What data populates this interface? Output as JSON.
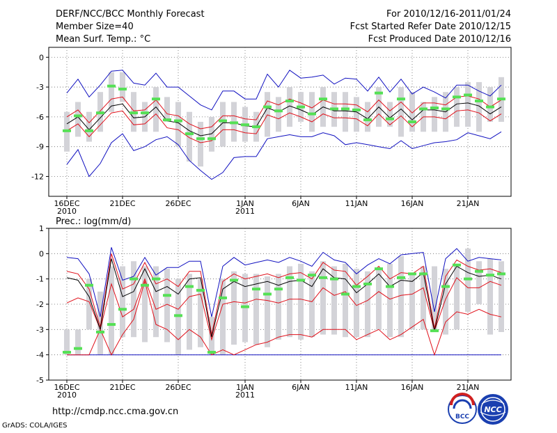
{
  "header": {
    "title": "DERF/NCC/BCC Monthly Forecast",
    "member_size": "Member Size=40",
    "variable": "Mean Surf. Temp.: °C",
    "period": "For 2010/12/16-2011/01/24",
    "started": "Fcst Started Refer Date 2010/12/15",
    "produced": "Fcst Produced Date 2010/12/16"
  },
  "precip_label": "Prec.: log(mm/d)",
  "footer": {
    "url": "http://cmdp.ncc.cma.gov.cn",
    "credit": "GrADS: COLA/IGES"
  },
  "logos": {
    "bcc": "BCC",
    "ncc": "NCC"
  },
  "colors": {
    "gray_bar": "#d3d3d8",
    "green": "#55e055",
    "red": "#e0101a",
    "blue": "#1010c0",
    "black": "#000000"
  },
  "chart_data": [
    {
      "type": "line",
      "name": "temperature",
      "ylim": [
        -14,
        1
      ],
      "yticks": [
        0,
        -3,
        -6,
        -9,
        -12
      ],
      "xlabels": [
        {
          "day": 1,
          "label": "16DEC",
          "sub": "2010"
        },
        {
          "day": 6,
          "label": "21DEC"
        },
        {
          "day": 11,
          "label": "26DEC"
        },
        {
          "day": 17,
          "label": "1JAN",
          "sub": "2011"
        },
        {
          "day": 22,
          "label": "6JAN"
        },
        {
          "day": 27,
          "label": "11JAN"
        },
        {
          "day": 32,
          "label": "16JAN"
        },
        {
          "day": 37,
          "label": "21JAN"
        }
      ],
      "days": [
        1,
        2,
        3,
        4,
        5,
        6,
        7,
        8,
        9,
        10,
        11,
        12,
        13,
        14,
        15,
        16,
        17,
        18,
        19,
        20,
        21,
        22,
        23,
        24,
        25,
        26,
        27,
        28,
        29,
        30,
        31,
        32,
        33,
        34,
        35,
        36,
        37,
        38,
        39,
        40
      ],
      "bar_low": [
        -9.5,
        -8,
        -8.5,
        -7.5,
        -5.5,
        -4.5,
        -7.5,
        -7.5,
        -7.5,
        -6.5,
        -9,
        -10.5,
        -11,
        -9.5,
        -9,
        -8.5,
        -8.5,
        -8.5,
        -8,
        -7.5,
        -7,
        -6.5,
        -7.5,
        -7,
        -7,
        -7.5,
        -7.5,
        -7.5,
        -7,
        -7,
        -8,
        -7.5,
        -7.5,
        -7.5,
        -7.5,
        -7,
        -7,
        -7.5,
        -6.5,
        -6.5
      ],
      "bar_high": [
        -5.5,
        -4.5,
        -5.5,
        -3.5,
        -1.5,
        -1.5,
        -3.5,
        -4.5,
        -3,
        -4,
        -4.5,
        -5.5,
        -6.5,
        -6,
        -4.5,
        -4.5,
        -5,
        -5.5,
        -3.5,
        -4,
        -3,
        -3.5,
        -3.5,
        -3,
        -3.5,
        -3.5,
        -4,
        -4.5,
        -3,
        -4.5,
        -3,
        -3.5,
        -4.5,
        -4,
        -3.5,
        -3,
        -2.5,
        -2.5,
        -3,
        -2
      ],
      "forecast": [
        -7.4,
        -5.9,
        -7.4,
        -5.6,
        -2.9,
        -3.2,
        -5.6,
        -5.6,
        -4.2,
        -6.3,
        -6.4,
        -7.7,
        -8.2,
        -8.2,
        -6.4,
        -6.6,
        -6.8,
        -7.0,
        -5.0,
        -5.4,
        -4.4,
        -5.0,
        -5.7,
        -4.2,
        -5.2,
        -5.2,
        -5.3,
        -6.3,
        -3.6,
        -6.2,
        -4.2,
        -6.5,
        -5.2,
        -5.1,
        -5.2,
        -4.0,
        -3.8,
        -4.4,
        -5.0,
        -4.2
      ],
      "mean": [
        -6.7,
        -6.0,
        -7.3,
        -6.1,
        -4.9,
        -4.7,
        -6.1,
        -6.0,
        -5.0,
        -6.4,
        -6.6,
        -7.4,
        -7.9,
        -7.7,
        -6.6,
        -6.6,
        -6.9,
        -7.0,
        -5.1,
        -5.5,
        -4.9,
        -5.3,
        -5.8,
        -5.0,
        -5.4,
        -5.4,
        -5.5,
        -6.2,
        -5.0,
        -6.1,
        -5.2,
        -6.3,
        -5.3,
        -5.3,
        -5.5,
        -4.7,
        -4.6,
        -4.9,
        -5.7,
        -5.0
      ],
      "mean_plus_sd": [
        -6.0,
        -5.3,
        -6.6,
        -5.4,
        -4.2,
        -4.0,
        -5.4,
        -5.3,
        -4.3,
        -5.7,
        -5.9,
        -6.7,
        -7.2,
        -7.0,
        -5.9,
        -5.9,
        -6.2,
        -6.3,
        -4.4,
        -4.8,
        -4.2,
        -4.6,
        -5.1,
        -4.3,
        -4.7,
        -4.7,
        -4.8,
        -5.5,
        -4.3,
        -5.4,
        -4.5,
        -5.6,
        -4.6,
        -4.6,
        -4.8,
        -4.0,
        -3.9,
        -4.2,
        -5.0,
        -4.3
      ],
      "mean_minus_sd": [
        -7.4,
        -6.7,
        -8.0,
        -6.8,
        -5.6,
        -5.4,
        -6.8,
        -6.7,
        -5.7,
        -7.1,
        -7.3,
        -8.1,
        -8.6,
        -8.4,
        -7.3,
        -7.3,
        -7.6,
        -7.7,
        -5.8,
        -6.2,
        -5.6,
        -6.0,
        -6.5,
        -5.7,
        -6.1,
        -6.1,
        -6.2,
        -6.9,
        -5.7,
        -6.8,
        -5.9,
        -7.0,
        -6.0,
        -6.0,
        -6.2,
        -5.4,
        -5.3,
        -5.6,
        -6.4,
        -5.7
      ],
      "max": [
        -3.6,
        -2.2,
        -4.0,
        -2.8,
        -1.4,
        -1.3,
        -2.6,
        -2.8,
        -1.6,
        -3.0,
        -3.0,
        -3.9,
        -4.8,
        -5.3,
        -3.4,
        -3.4,
        -4.2,
        -4.2,
        -1.7,
        -3.0,
        -1.3,
        -2.1,
        -2.0,
        -1.8,
        -2.7,
        -2.1,
        -2.2,
        -3.4,
        -2.0,
        -3.5,
        -2.2,
        -3.7,
        -3.0,
        -3.5,
        -4.1,
        -2.8,
        -2.8,
        -3.4,
        -3.9,
        -2.8
      ],
      "min": [
        -10.8,
        -9.3,
        -12.0,
        -10.7,
        -8.6,
        -7.7,
        -9.4,
        -9.0,
        -8.3,
        -8.0,
        -8.8,
        -10.4,
        -11.4,
        -12.3,
        -11.6,
        -10.1,
        -10.0,
        -10.0,
        -8.2,
        -8.0,
        -7.8,
        -8.0,
        -8.0,
        -7.6,
        -7.9,
        -8.8,
        -8.6,
        -8.8,
        -9.0,
        -9.2,
        -8.4,
        -9.2,
        -8.9,
        -8.6,
        -8.5,
        -8.3,
        -7.6,
        -7.9,
        -8.2,
        -7.5
      ]
    },
    {
      "type": "line",
      "name": "precipitation",
      "ylim": [
        -5,
        1
      ],
      "yticks": [
        1,
        0,
        -1,
        -2,
        -3,
        -4,
        -5
      ],
      "xlabels": [
        {
          "day": 1,
          "label": "16DEC",
          "sub": "2010"
        },
        {
          "day": 6,
          "label": "21DEC"
        },
        {
          "day": 11,
          "label": "26DEC"
        },
        {
          "day": 17,
          "label": "1JAN",
          "sub": "2011"
        },
        {
          "day": 22,
          "label": "6JAN"
        },
        {
          "day": 27,
          "label": "11JAN"
        },
        {
          "day": 32,
          "label": "16JAN"
        },
        {
          "day": 37,
          "label": "21JAN"
        }
      ],
      "days": [
        1,
        2,
        3,
        4,
        5,
        6,
        7,
        8,
        9,
        10,
        11,
        12,
        13,
        14,
        15,
        16,
        17,
        18,
        19,
        20,
        21,
        22,
        23,
        24,
        25,
        26,
        27,
        28,
        29,
        30,
        31,
        32,
        33,
        34,
        35,
        36,
        37,
        38,
        39,
        40
      ],
      "bar_low": [
        -4,
        -4,
        -3,
        -4,
        -4,
        -3.3,
        -3.3,
        -3.5,
        -3.3,
        -3.5,
        -4,
        -3.8,
        -3.7,
        -4,
        -4,
        -3.6,
        -3.5,
        -3.6,
        -3.7,
        -3.4,
        -3.3,
        -3.4,
        -3.3,
        -3.2,
        -3.2,
        -3.3,
        -3.3,
        -3.3,
        -3.0,
        -3.3,
        -3.3,
        -3.0,
        -3.0,
        -3.0,
        -3.2,
        -3.0,
        -2.3,
        -2.0,
        -3.2,
        -3.1
      ],
      "bar_high": [
        -3,
        -3,
        -1.0,
        -1.5,
        -0.5,
        -0.5,
        -0.3,
        -0.5,
        -0.5,
        -0.6,
        -1.0,
        -0.8,
        -1.0,
        -2.5,
        -1.0,
        -0.7,
        -0.8,
        -0.8,
        -0.9,
        -0.8,
        -0.5,
        -0.4,
        -0.7,
        -0.3,
        -0.5,
        -0.4,
        -0.6,
        -0.7,
        -0.6,
        -0.4,
        -0.1,
        -0.8,
        -0.5,
        -0.5,
        -0.6,
        -0.5,
        0.2,
        -0.3,
        -0.2,
        -0.3
      ],
      "forecast": [
        -3.9,
        -3.75,
        -1.25,
        -3.1,
        -2.8,
        -2.2,
        -1.0,
        -1.25,
        -1.0,
        -1.65,
        -2.45,
        -1.3,
        -1.45,
        -3.9,
        -1.75,
        -1.05,
        -2.1,
        -1.4,
        -1.6,
        -1.4,
        -0.95,
        -1.05,
        -0.85,
        -0.95,
        -1.0,
        -1.6,
        -1.3,
        -1.2,
        -0.6,
        -1.3,
        -0.95,
        -0.8,
        -0.8,
        -3.05,
        -1.3,
        -0.45,
        -1.0,
        -0.7,
        -0.85,
        -0.8
      ],
      "mean": [
        -0.95,
        -1.05,
        -1.7,
        -3.0,
        -0.2,
        -1.7,
        -1.5,
        -0.6,
        -1.5,
        -1.3,
        -1.6,
        -1.0,
        -0.95,
        -3.3,
        -1.4,
        -1.1,
        -1.3,
        -1.2,
        -1.1,
        -1.25,
        -1.1,
        -1.05,
        -1.3,
        -0.6,
        -0.95,
        -1.0,
        -1.55,
        -1.2,
        -0.8,
        -1.3,
        -1.05,
        -1.1,
        -0.75,
        -3.05,
        -1.2,
        -0.5,
        -0.75,
        -0.9,
        -0.85,
        -1.0
      ],
      "mean_plus_sd": [
        -0.7,
        -0.8,
        -1.4,
        -2.9,
        0.0,
        -1.4,
        -1.2,
        -0.35,
        -1.2,
        -1.0,
        -1.3,
        -0.7,
        -0.7,
        -3.2,
        -1.1,
        -0.8,
        -1.0,
        -0.9,
        -0.8,
        -0.95,
        -0.8,
        -0.75,
        -1.0,
        -0.35,
        -0.65,
        -0.7,
        -1.25,
        -0.9,
        -0.5,
        -1.0,
        -0.75,
        -0.8,
        -0.5,
        -2.95,
        -0.9,
        -0.25,
        -0.5,
        -0.65,
        -0.6,
        -0.75
      ],
      "mean_minus_sd": [
        -1.95,
        -1.75,
        -1.9,
        -3.0,
        -1.2,
        -2.5,
        -2.2,
        -1.0,
        -2.2,
        -2.0,
        -2.2,
        -1.7,
        -1.6,
        -3.4,
        -2.0,
        -1.9,
        -1.95,
        -1.8,
        -1.85,
        -1.95,
        -1.8,
        -1.8,
        -1.9,
        -1.35,
        -1.65,
        -1.5,
        -2.05,
        -1.85,
        -1.5,
        -1.8,
        -1.65,
        -1.6,
        -1.35,
        -3.05,
        -1.8,
        -0.95,
        -1.35,
        -1.35,
        -1.1,
        -1.25
      ],
      "max": [
        -0.15,
        -0.2,
        -0.8,
        -2.5,
        0.25,
        -1.05,
        -0.9,
        -0.15,
        -0.85,
        -0.55,
        -0.55,
        -0.3,
        -0.3,
        -2.5,
        -0.5,
        -0.15,
        -0.45,
        -0.35,
        -0.25,
        -0.35,
        -0.15,
        -0.3,
        -0.5,
        0.05,
        -0.25,
        -0.35,
        -0.8,
        -0.45,
        -0.2,
        -0.4,
        -0.05,
        0.0,
        0.05,
        -2.3,
        -0.2,
        0.2,
        -0.3,
        -0.15,
        -0.2,
        -0.25
      ],
      "min": [
        -4,
        -4,
        -4,
        -4,
        -4,
        -4,
        -4,
        -4,
        -4,
        -4,
        -4,
        -4,
        -4,
        -4,
        -4,
        -4,
        -4,
        -4,
        -4,
        -4,
        -4,
        -4,
        -4,
        -4,
        -4,
        -4,
        -4,
        -4,
        -4,
        -4,
        -4,
        -4,
        -4,
        -4,
        -4,
        -4,
        -4,
        -4,
        -4,
        -4
      ],
      "lower": [
        -4,
        -4,
        -4,
        -3.0,
        -4,
        -3.2,
        -2.6,
        -1.1,
        -2.8,
        -3.0,
        -3.4,
        -3.0,
        -3.3,
        -4,
        -3.8,
        -4,
        -3.8,
        -3.6,
        -3.5,
        -3.3,
        -3.2,
        -3.2,
        -3.3,
        -3.0,
        -3.0,
        -3.0,
        -3.4,
        -3.2,
        -3.0,
        -3.4,
        -3.2,
        -2.9,
        -2.6,
        -4,
        -2.7,
        -2.3,
        -2.4,
        -2.2,
        -2.4,
        -2.5
      ]
    }
  ]
}
